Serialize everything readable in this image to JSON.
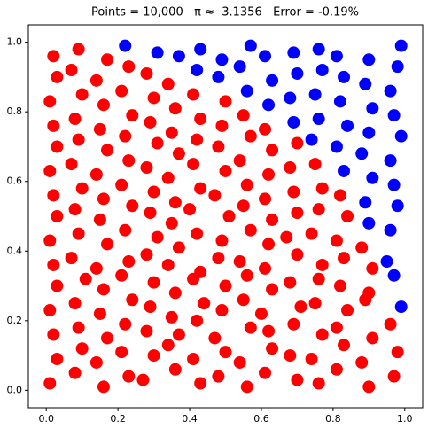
{
  "chart_data": {
    "type": "scatter",
    "title": "Points = 10,000   π ≈  3.1356   Error = -0.19%",
    "xlim": [
      -0.05,
      1.05
    ],
    "ylim": [
      -0.05,
      1.05
    ],
    "xticks": [
      {
        "value": 0,
        "label": "0.0"
      },
      {
        "value": 0.2,
        "label": "0.2"
      },
      {
        "value": 0.4,
        "label": "0.4"
      },
      {
        "value": 0.6,
        "label": "0.6"
      },
      {
        "value": 0.8,
        "label": "0.8"
      },
      {
        "value": 1,
        "label": "1.0"
      }
    ],
    "yticks": [
      {
        "value": 0,
        "label": "0.0"
      },
      {
        "value": 0.2,
        "label": "0.2"
      },
      {
        "value": 0.4,
        "label": "0.4"
      },
      {
        "value": 0.6,
        "label": "0.6"
      },
      {
        "value": 0.8,
        "label": "0.8"
      },
      {
        "value": 1,
        "label": "1.0"
      }
    ],
    "grid": false,
    "series": [
      {
        "color": "#0000ff",
        "x": [
          0.99,
          0.97,
          0.95,
          0.96,
          0.9,
          0.98,
          0.89,
          0.97,
          0.83,
          0.91,
          0.96,
          0.74,
          0.81,
          0.88,
          0.99,
          0.69,
          0.76,
          0.84,
          0.9,
          0.97,
          0.56,
          0.62,
          0.68,
          0.75,
          0.82,
          0.91,
          0.96,
          0.42,
          0.48,
          0.54,
          0.63,
          0.7,
          0.77,
          0.83,
          0.89,
          0.98,
          0.22,
          0.31,
          0.37,
          0.43,
          0.49,
          0.57,
          0.61,
          0.69,
          0.76,
          0.81,
          0.9,
          0.99
        ],
        "y": [
          0.24,
          0.33,
          0.37,
          0.46,
          0.48,
          0.53,
          0.54,
          0.59,
          0.63,
          0.61,
          0.66,
          0.72,
          0.7,
          0.68,
          0.73,
          0.77,
          0.78,
          0.76,
          0.74,
          0.79,
          0.86,
          0.82,
          0.84,
          0.85,
          0.83,
          0.81,
          0.86,
          0.92,
          0.9,
          0.93,
          0.89,
          0.91,
          0.92,
          0.9,
          0.88,
          0.93,
          0.99,
          0.97,
          0.96,
          0.98,
          0.95,
          0.99,
          0.96,
          0.97,
          0.98,
          0.96,
          0.95,
          0.99
        ]
      },
      {
        "color": "#ff0000",
        "x": [
          0.01,
          0.08,
          0.16,
          0.23,
          0.27,
          0.36,
          0.43,
          0.48,
          0.56,
          0.61,
          0.7,
          0.76,
          0.81,
          0.9,
          0.97,
          0.03,
          0.1,
          0.14,
          0.21,
          0.3,
          0.34,
          0.41,
          0.5,
          0.54,
          0.63,
          0.68,
          0.74,
          0.83,
          0.88,
          0.98,
          0.02,
          0.09,
          0.17,
          0.22,
          0.28,
          0.37,
          0.42,
          0.47,
          0.57,
          0.62,
          0.69,
          0.77,
          0.81,
          0.91,
          0.96,
          0.01,
          0.08,
          0.15,
          0.24,
          0.29,
          0.35,
          0.44,
          0.49,
          0.55,
          0.6,
          0.71,
          0.75,
          0.84,
          0.89,
          0.03,
          0.11,
          0.16,
          0.21,
          0.3,
          0.36,
          0.41,
          0.5,
          0.56,
          0.63,
          0.68,
          0.76,
          0.82,
          0.9,
          0.02,
          0.07,
          0.14,
          0.23,
          0.28,
          0.34,
          0.43,
          0.48,
          0.54,
          0.61,
          0.7,
          0.77,
          0.83,
          0.91,
          0.01,
          0.09,
          0.17,
          0.22,
          0.31,
          0.37,
          0.42,
          0.49,
          0.57,
          0.62,
          0.67,
          0.74,
          0.81,
          0.88,
          0.03,
          0.08,
          0.15,
          0.24,
          0.29,
          0.35,
          0.4,
          0.51,
          0.55,
          0.63,
          0.7,
          0.76,
          0.84,
          0.02,
          0.1,
          0.16,
          0.21,
          0.3,
          0.36,
          0.43,
          0.47,
          0.56,
          0.61,
          0.69,
          0.77,
          0.82,
          0.01,
          0.07,
          0.14,
          0.23,
          0.28,
          0.34,
          0.41,
          0.5,
          0.54,
          0.62,
          0.68,
          0.75,
          0.03,
          0.09,
          0.17,
          0.22,
          0.31,
          0.37,
          0.42,
          0.48,
          0.57,
          0.63,
          0.7,
          0.02,
          0.08,
          0.15,
          0.24,
          0.29,
          0.35,
          0.43,
          0.49,
          0.55,
          0.61,
          0.01,
          0.1,
          0.16,
          0.21,
          0.3,
          0.36,
          0.41,
          0.5,
          0.03,
          0.07,
          0.14,
          0.23,
          0.28,
          0.34,
          0.02,
          0.09,
          0.17
        ],
        "y": [
          0.02,
          0.05,
          0.01,
          0.04,
          0.03,
          0.06,
          0.02,
          0.04,
          0.01,
          0.05,
          0.03,
          0.02,
          0.06,
          0.01,
          0.04,
          0.09,
          0.12,
          0.08,
          0.11,
          0.1,
          0.13,
          0.09,
          0.11,
          0.08,
          0.12,
          0.1,
          0.09,
          0.13,
          0.08,
          0.11,
          0.16,
          0.18,
          0.15,
          0.19,
          0.17,
          0.16,
          0.2,
          0.15,
          0.18,
          0.17,
          0.19,
          0.16,
          0.18,
          0.15,
          0.19,
          0.23,
          0.25,
          0.22,
          0.26,
          0.24,
          0.21,
          0.25,
          0.23,
          0.26,
          0.22,
          0.24,
          0.25,
          0.23,
          0.26,
          0.3,
          0.32,
          0.29,
          0.33,
          0.31,
          0.28,
          0.32,
          0.3,
          0.33,
          0.29,
          0.31,
          0.32,
          0.3,
          0.28,
          0.36,
          0.38,
          0.35,
          0.37,
          0.39,
          0.36,
          0.34,
          0.38,
          0.37,
          0.35,
          0.39,
          0.36,
          0.38,
          0.35,
          0.43,
          0.45,
          0.42,
          0.46,
          0.44,
          0.41,
          0.45,
          0.43,
          0.46,
          0.42,
          0.44,
          0.45,
          0.43,
          0.41,
          0.5,
          0.52,
          0.49,
          0.53,
          0.51,
          0.48,
          0.52,
          0.5,
          0.53,
          0.49,
          0.51,
          0.52,
          0.5,
          0.56,
          0.58,
          0.55,
          0.59,
          0.57,
          0.54,
          0.58,
          0.56,
          0.59,
          0.55,
          0.57,
          0.58,
          0.56,
          0.63,
          0.65,
          0.62,
          0.66,
          0.64,
          0.61,
          0.65,
          0.63,
          0.66,
          0.62,
          0.64,
          0.65,
          0.7,
          0.72,
          0.69,
          0.73,
          0.71,
          0.68,
          0.72,
          0.7,
          0.73,
          0.69,
          0.71,
          0.76,
          0.78,
          0.75,
          0.79,
          0.77,
          0.74,
          0.78,
          0.76,
          0.79,
          0.75,
          0.83,
          0.85,
          0.82,
          0.86,
          0.84,
          0.81,
          0.85,
          0.83,
          0.9,
          0.92,
          0.89,
          0.93,
          0.91,
          0.88,
          0.96,
          0.98,
          0.95
        ]
      }
    ]
  }
}
